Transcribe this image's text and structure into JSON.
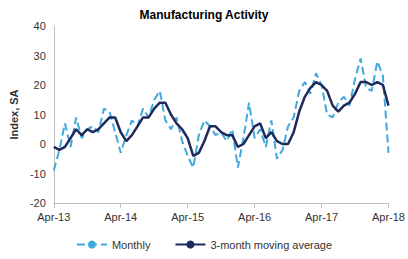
{
  "chart_data": {
    "type": "line",
    "title": "Manufacturing Activity",
    "y_label": "Index, SA",
    "categories": [
      "Apr-13",
      null,
      null,
      null,
      null,
      null,
      null,
      null,
      null,
      null,
      null,
      null,
      "Apr-14",
      null,
      null,
      null,
      null,
      null,
      null,
      null,
      null,
      null,
      null,
      null,
      "Apr-15",
      null,
      null,
      null,
      null,
      null,
      null,
      null,
      null,
      null,
      null,
      null,
      "Apr-16",
      null,
      null,
      null,
      null,
      null,
      null,
      null,
      null,
      null,
      null,
      null,
      "Apr-17",
      null,
      null,
      null,
      null,
      null,
      null,
      null,
      null,
      null,
      null,
      null,
      "Apr-18"
    ],
    "series": [
      {
        "name": "Monthly",
        "color": "#3fa9dd",
        "line_style": "dashed",
        "marker": "none",
        "values": [
          -9,
          -2,
          7,
          -1,
          9,
          2,
          5,
          6,
          4,
          12,
          11,
          4,
          -3,
          3,
          8,
          6,
          12,
          9,
          15,
          18,
          8,
          5,
          9,
          1,
          -4,
          -8,
          3,
          8,
          6,
          3,
          4,
          1,
          5,
          -8,
          2,
          14,
          2,
          5,
          -1,
          8,
          -5,
          -2,
          6,
          9,
          18,
          21,
          17,
          24,
          20,
          10,
          9,
          14,
          16,
          13,
          22,
          29,
          19,
          18,
          28,
          23,
          -3
        ]
      },
      {
        "name": "3-month moving average",
        "color": "#1f2a5c",
        "line_style": "solid",
        "marker": "none",
        "values": [
          -1,
          -2,
          -1,
          2,
          5,
          3,
          5,
          4,
          5,
          7,
          9,
          9,
          4,
          1,
          3,
          6,
          9,
          9,
          12,
          14,
          14,
          10,
          7,
          5,
          2,
          -4,
          -3,
          1,
          6,
          6,
          4,
          3,
          3,
          -1,
          0,
          3,
          6,
          7,
          2,
          4,
          1,
          0,
          0,
          4,
          11,
          16,
          19,
          21,
          20,
          18,
          13,
          11,
          13,
          14,
          17,
          21,
          21,
          20,
          21,
          20,
          13
        ]
      }
    ],
    "ylim": [
      -20,
      40
    ],
    "yticks": [
      -20,
      -10,
      0,
      10,
      20,
      30,
      40
    ],
    "grid": false,
    "legend": "bottom"
  }
}
